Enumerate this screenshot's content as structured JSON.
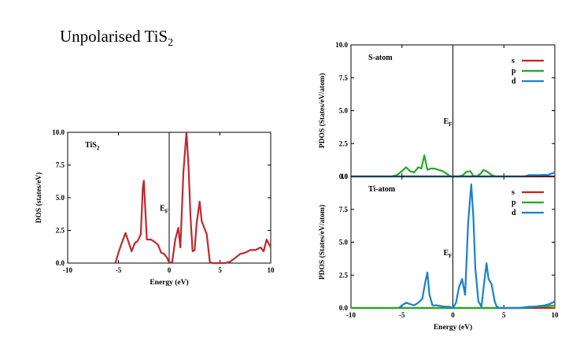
{
  "slide": {
    "title_main": "Unpolarised TiS",
    "title_sub": "2"
  },
  "colors": {
    "s": "#cc1f1f",
    "p": "#22aa22",
    "d": "#1a7fd0",
    "total": "#c0282d"
  },
  "chart_data": [
    {
      "type": "line",
      "id": "total",
      "panel_label_main": "TiS",
      "panel_label_sub": "2",
      "xlabel": "Energy (eV)",
      "ylabel": "DOS (states/eV)",
      "xlim": [
        -10,
        10
      ],
      "ylim": [
        0,
        10
      ],
      "xticks": [
        "-10",
        "-5",
        "0",
        "5",
        "10"
      ],
      "yticks": [
        "0.0",
        "2.5",
        "5.0",
        "7.5",
        "10.0"
      ],
      "fermi_label_main": "E",
      "fermi_label_sub": "F",
      "series": [
        {
          "color_key": "total",
          "x": [
            -5.3,
            -5.0,
            -4.6,
            -4.3,
            -4.0,
            -3.7,
            -3.4,
            -3.1,
            -2.8,
            -2.6,
            -2.5,
            -2.2,
            -1.8,
            -1.4,
            -1.1,
            -0.8,
            -0.5,
            -0.2,
            0.0,
            0.3,
            0.6,
            0.9,
            1.1,
            1.4,
            1.7,
            1.9,
            2.1,
            2.3,
            2.5,
            2.7,
            3.0,
            3.2,
            3.4,
            3.7,
            4.0,
            4.2,
            4.6,
            5.0,
            5.5,
            6.0,
            6.5,
            7.0,
            7.5,
            8.0,
            8.5,
            9.0,
            9.3,
            9.6,
            10.0
          ],
          "y": [
            0.0,
            0.8,
            1.7,
            2.3,
            1.6,
            0.9,
            1.5,
            1.7,
            2.2,
            5.8,
            6.3,
            1.8,
            1.8,
            1.6,
            1.4,
            0.8,
            0.7,
            0.4,
            0.0,
            0.1,
            1.8,
            2.7,
            1.2,
            7.0,
            10.0,
            7.5,
            3.5,
            0.9,
            1.0,
            3.0,
            4.7,
            3.2,
            2.8,
            2.2,
            0.1,
            0.0,
            0.0,
            0.0,
            0.0,
            0.1,
            0.4,
            0.7,
            0.8,
            1.0,
            1.0,
            1.2,
            0.9,
            1.8,
            1.2
          ]
        }
      ]
    },
    {
      "type": "line",
      "id": "s-atom",
      "panel_label": "S-atom",
      "ylabel": "PDOS (States/eV/atom)",
      "xlim": [
        -10,
        10
      ],
      "ylim": [
        0,
        10
      ],
      "yticks": [
        "0.0",
        "2.5",
        "5.0",
        "7.5",
        "10.0"
      ],
      "fermi_label_main": "E",
      "fermi_label_sub": "F",
      "legend": [
        "s",
        "p",
        "d"
      ],
      "series": [
        {
          "name": "s",
          "color_key": "s",
          "x": [
            -10,
            10
          ],
          "y": [
            0.0,
            0.0
          ]
        },
        {
          "name": "p",
          "color_key": "p",
          "x": [
            -6.0,
            -5.5,
            -5.0,
            -4.6,
            -4.2,
            -3.8,
            -3.4,
            -3.1,
            -2.8,
            -2.5,
            -2.2,
            -1.8,
            -1.4,
            -1.0,
            -0.6,
            -0.2,
            0.2,
            0.6,
            1.0,
            1.3,
            1.7,
            2.0,
            2.3,
            2.7,
            3.0,
            3.4,
            3.8,
            4.2,
            4.6
          ],
          "y": [
            0.0,
            0.1,
            0.4,
            0.7,
            0.4,
            0.3,
            0.7,
            0.6,
            1.6,
            0.5,
            0.6,
            0.6,
            0.5,
            0.4,
            0.2,
            0.0,
            0.0,
            0.0,
            0.1,
            0.35,
            0.4,
            0.05,
            0.0,
            0.2,
            0.5,
            0.35,
            0.1,
            0.0,
            0.0
          ]
        },
        {
          "name": "d",
          "color_key": "d",
          "x": [
            -10,
            7.0,
            7.5,
            8.0,
            8.5,
            9.0,
            9.3,
            9.6,
            10.0
          ],
          "y": [
            0.0,
            0.0,
            0.1,
            0.1,
            0.1,
            0.12,
            0.1,
            0.2,
            0.3
          ]
        }
      ]
    },
    {
      "type": "line",
      "id": "ti-atom",
      "panel_label": "Ti-atom",
      "xlabel": "Energy (eV)",
      "ylabel": "PDOS (States/eV/atom)",
      "xlim": [
        -10,
        10
      ],
      "ylim": [
        0,
        10
      ],
      "xticks": [
        "-10",
        "-5",
        "0",
        "5",
        "10"
      ],
      "yticks": [
        "0.0",
        "2.5",
        "5.0",
        "7.5",
        "10"
      ],
      "fermi_label_main": "E",
      "fermi_label_sub": "F",
      "legend": [
        "s",
        "p",
        "d"
      ],
      "series": [
        {
          "name": "s",
          "color_key": "s",
          "x": [
            -10,
            10
          ],
          "y": [
            0.0,
            0.0
          ]
        },
        {
          "name": "p",
          "color_key": "p",
          "x": [
            -10,
            7.0,
            7.5,
            8.0,
            8.5,
            9.0,
            9.5,
            10.0
          ],
          "y": [
            0.0,
            0.0,
            0.05,
            0.1,
            0.1,
            0.12,
            0.15,
            0.2
          ]
        },
        {
          "name": "d",
          "color_key": "d",
          "x": [
            -5.3,
            -5.0,
            -4.6,
            -4.2,
            -3.8,
            -3.4,
            -3.0,
            -2.7,
            -2.5,
            -2.3,
            -2.0,
            -1.6,
            -1.2,
            -0.8,
            -0.4,
            0.0,
            0.3,
            0.6,
            0.9,
            1.2,
            1.5,
            1.8,
            2.0,
            2.2,
            2.5,
            2.8,
            3.0,
            3.3,
            3.5,
            3.8,
            4.1,
            4.3,
            4.6,
            5.0,
            5.5,
            6.0,
            6.5,
            7.0,
            7.5,
            8.0,
            8.5,
            9.0,
            9.5,
            10.0
          ],
          "y": [
            0.0,
            0.2,
            0.4,
            0.3,
            0.2,
            0.4,
            0.7,
            2.0,
            2.7,
            1.0,
            0.2,
            0.2,
            0.15,
            0.1,
            0.1,
            0.0,
            0.4,
            1.6,
            2.2,
            1.0,
            6.5,
            9.4,
            7.0,
            3.0,
            0.5,
            0.1,
            1.5,
            3.4,
            2.2,
            1.8,
            0.5,
            0.1,
            0.0,
            0.0,
            0.0,
            0.0,
            0.0,
            0.05,
            0.1,
            0.1,
            0.15,
            0.2,
            0.3,
            0.5
          ]
        }
      ]
    }
  ]
}
